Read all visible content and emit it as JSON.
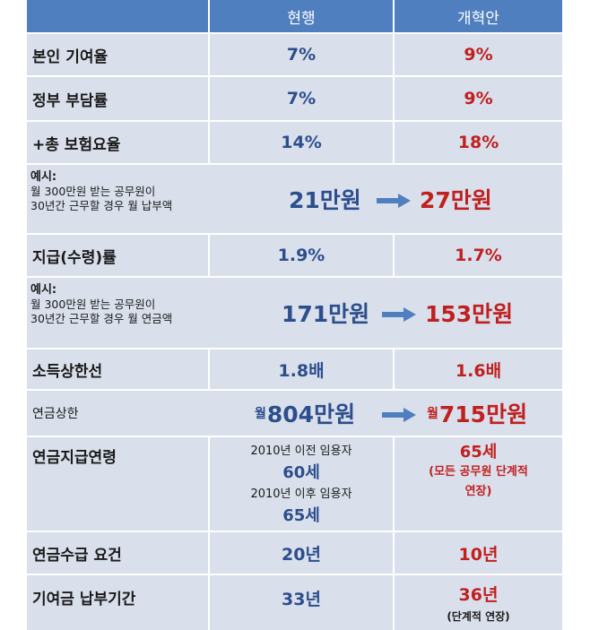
{
  "header": {
    "col1": "현행",
    "col2": "개혁안"
  },
  "rows": {
    "r1": {
      "label": "본인 기여율",
      "cur": "7%",
      "new": "9%"
    },
    "r2": {
      "label": "정부 부담률",
      "cur": "7%",
      "new": "9%"
    },
    "r3": {
      "label": "+총 보험요율",
      "cur": "14%",
      "new": "18%"
    },
    "r4": {
      "title": "예시:",
      "line1": "월 300만원 받는 공무원이",
      "line2": "30년간 근무할 경우 월 납부액",
      "cur": "21만원",
      "new": "27만원"
    },
    "r5": {
      "label": "지급(수령)률",
      "cur": "1.9%",
      "new": "1.7%"
    },
    "r6": {
      "title": "예시:",
      "line1": "월 300만원 받는 공무원이",
      "line2": "30년간 근무할 경우 월 연금액",
      "cur": "171만원",
      "new": "153만원"
    },
    "r7": {
      "label": "소득상한선",
      "cur": "1.8배",
      "new": "1.6배"
    },
    "r8": {
      "label": "연금상한",
      "cur_prefix": "월",
      "cur": "804만원",
      "new_prefix": "월",
      "new": "715만원"
    },
    "r9": {
      "label": "연금지급연령",
      "cur_l1": "2010년 이전 임용자",
      "cur_l2": "60세",
      "cur_l3": "2010년 이후 임용자",
      "cur_l4": "65세",
      "new_l1": "65세",
      "new_l2": "(모든 공무원 단계적",
      "new_l3": "연장)"
    },
    "r10": {
      "label": "연금수급 요건",
      "cur": "20년",
      "new": "10년"
    },
    "r11": {
      "label": "기여금 납부기간",
      "cur": "33년",
      "new": "36년",
      "new_note": "(단계적 연장)"
    }
  },
  "colors": {
    "header_bg": "#4f7fbf",
    "cell_bg": "#d9e0ec",
    "current_text": "#2d4e8c",
    "reform_text": "#c0201f"
  },
  "icons": [
    "right-arrow-icon"
  ]
}
